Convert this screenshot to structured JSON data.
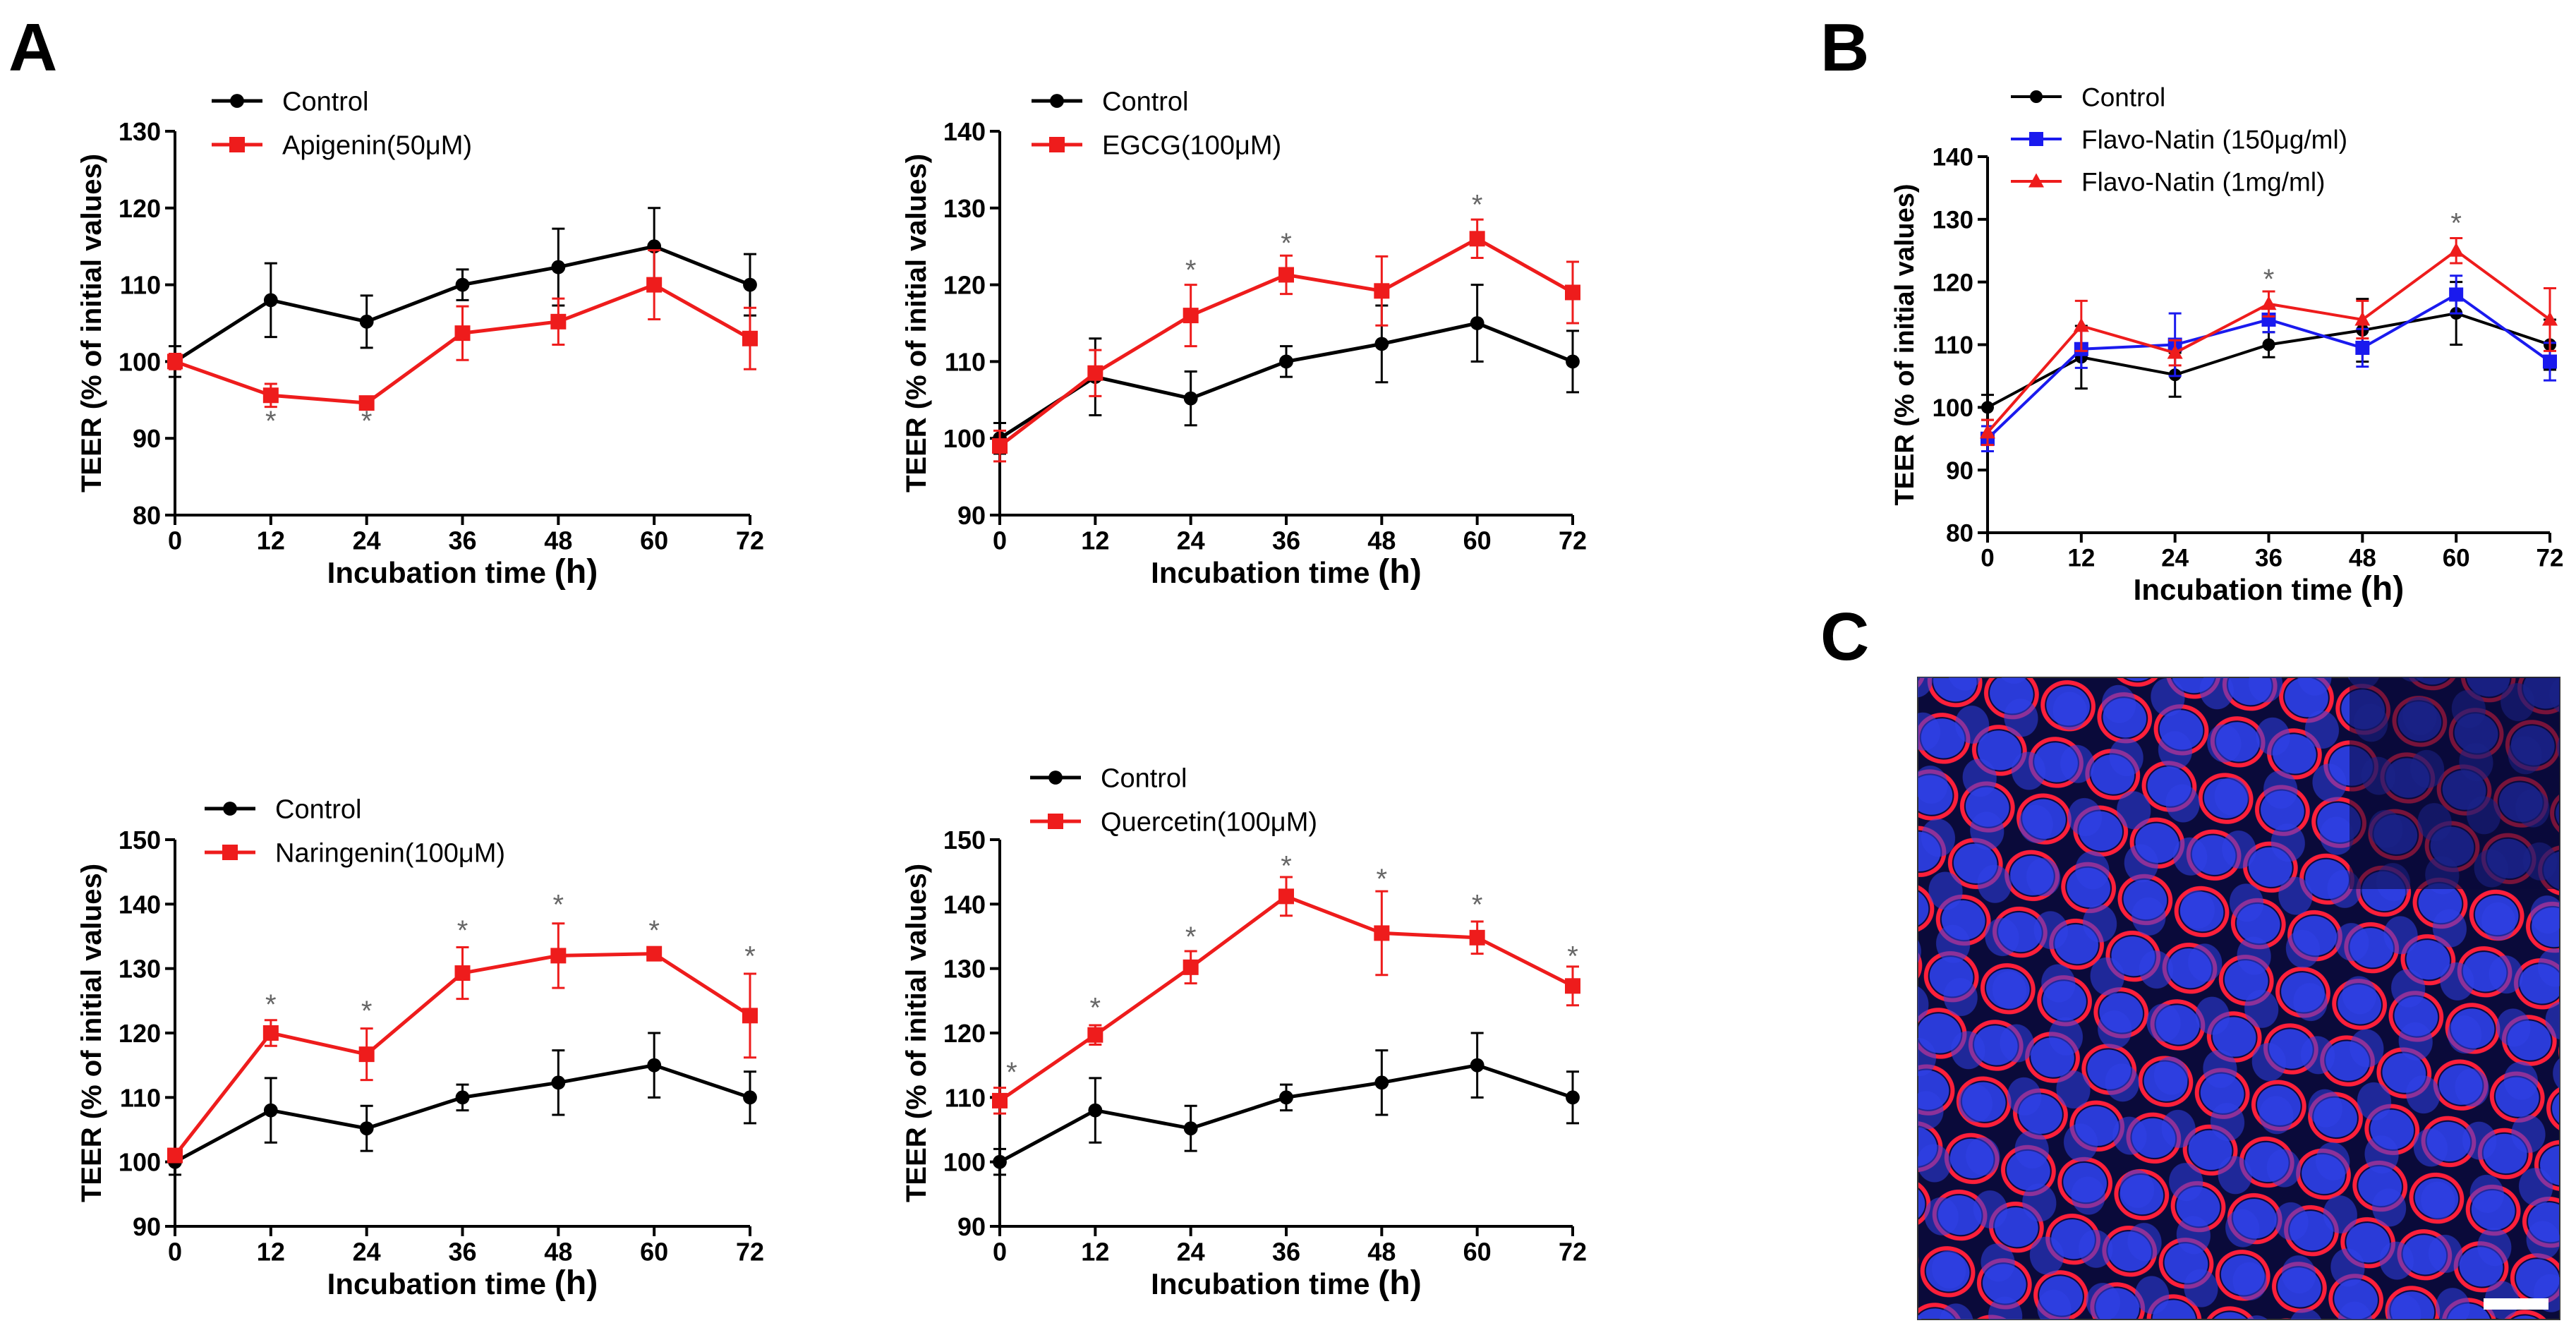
{
  "panel_labels": {
    "a": "A",
    "b": "B",
    "c": "C"
  },
  "colors": {
    "control": "#000000",
    "treatment": "#ee1c1c",
    "blue": "#1a1aee",
    "star": "#666666",
    "micro_bg": "#0a0a3a"
  },
  "image": {
    "name": "Confocal micrograph of cell monolayer (blue nuclei, red cell junctions) with scale bar"
  },
  "chart_data": [
    {
      "id": "apigenin",
      "type": "line",
      "ylabel": "TEER (% of initial values)",
      "xlabel": "Incubation time",
      "xlabel_unit": "(h)",
      "x": [
        0,
        12,
        24,
        36,
        48,
        60,
        72
      ],
      "xlim": [
        0,
        72
      ],
      "ylim": [
        80,
        130
      ],
      "yticks": [
        80,
        90,
        100,
        110,
        120,
        130
      ],
      "series": [
        {
          "name": "Control",
          "marker": "circle",
          "color": "#000000",
          "values": [
            100,
            108,
            105.2,
            110,
            112.3,
            115,
            110
          ],
          "errors": [
            2,
            4.8,
            3.4,
            2,
            5,
            5,
            4
          ]
        },
        {
          "name": "Apigenin(50μM)",
          "marker": "square",
          "color": "#ee1c1c",
          "values": [
            100,
            95.6,
            94.6,
            103.7,
            105.2,
            110,
            103
          ],
          "errors": [
            1,
            1.5,
            0.8,
            3.5,
            3,
            4.5,
            4
          ]
        }
      ],
      "significance": [
        {
          "x": 12,
          "y": 92.3,
          "label": "*"
        },
        {
          "x": 24,
          "y": 92.3,
          "label": "*"
        }
      ]
    },
    {
      "id": "egcg",
      "type": "line",
      "ylabel": "TEER (% of initial values)",
      "xlabel": "Incubation time",
      "xlabel_unit": "(h)",
      "x": [
        0,
        12,
        24,
        36,
        48,
        60,
        72
      ],
      "xlim": [
        0,
        72
      ],
      "ylim": [
        90,
        140
      ],
      "yticks": [
        90,
        100,
        110,
        120,
        130,
        140
      ],
      "series": [
        {
          "name": "Control",
          "marker": "circle",
          "color": "#000000",
          "values": [
            100,
            108,
            105.2,
            110,
            112.3,
            115,
            110
          ],
          "errors": [
            2,
            5,
            3.5,
            2,
            5,
            5,
            4
          ]
        },
        {
          "name": "EGCG(100μM)",
          "marker": "square",
          "color": "#ee1c1c",
          "values": [
            99,
            108.5,
            116,
            121.3,
            119.2,
            126,
            119
          ],
          "errors": [
            2,
            3,
            4,
            2.5,
            4.5,
            2.5,
            4
          ]
        }
      ],
      "significance": [
        {
          "x": 24,
          "y": 122,
          "label": "*"
        },
        {
          "x": 36,
          "y": 125.5,
          "label": "*"
        },
        {
          "x": 60,
          "y": 130.5,
          "label": "*"
        }
      ]
    },
    {
      "id": "flavonatin",
      "type": "line",
      "ylabel": "TEER (% of initial values)",
      "xlabel": "Incubation time",
      "xlabel_unit": "(h)",
      "x": [
        0,
        12,
        24,
        36,
        48,
        60,
        72
      ],
      "xlim": [
        0,
        72
      ],
      "ylim": [
        80,
        140
      ],
      "yticks": [
        80,
        90,
        100,
        110,
        120,
        130,
        140
      ],
      "series": [
        {
          "name": "Control",
          "marker": "circle",
          "color": "#000000",
          "values": [
            100,
            108,
            105.2,
            110,
            112.3,
            115,
            110
          ],
          "errors": [
            2,
            5,
            3.5,
            2,
            5,
            5,
            4
          ]
        },
        {
          "name": "Flavo-Natin (150μg/ml)",
          "marker": "square",
          "color": "#1a1aee",
          "values": [
            95,
            109.3,
            110,
            114,
            109.5,
            118,
            107.3
          ],
          "errors": [
            2,
            3,
            5,
            2,
            3,
            3,
            3
          ]
        },
        {
          "name": "Flavo-Natin (1mg/ml)",
          "marker": "triangle",
          "color": "#ee1c1c",
          "values": [
            96,
            113,
            108.7,
            116.5,
            114,
            125,
            114
          ],
          "errors": [
            2,
            4,
            2,
            2,
            3,
            2,
            5
          ]
        }
      ],
      "significance": [
        {
          "x": 36,
          "y": 120.5,
          "label": "*"
        },
        {
          "x": 60,
          "y": 129.5,
          "label": "*"
        }
      ]
    },
    {
      "id": "naringenin",
      "type": "line",
      "ylabel": "TEER (% of initial values)",
      "xlabel": "Incubation time",
      "xlabel_unit": "(h)",
      "x": [
        0,
        12,
        24,
        36,
        48,
        60,
        72
      ],
      "xlim": [
        0,
        72
      ],
      "ylim": [
        90,
        150
      ],
      "yticks": [
        90,
        100,
        110,
        120,
        130,
        140,
        150
      ],
      "series": [
        {
          "name": "Control",
          "marker": "circle",
          "color": "#000000",
          "values": [
            100,
            108,
            105.2,
            110,
            112.3,
            115,
            110
          ],
          "errors": [
            2,
            5,
            3.5,
            2,
            5,
            5,
            4
          ]
        },
        {
          "name": "Naringenin(100μM)",
          "marker": "square",
          "color": "#ee1c1c",
          "values": [
            101,
            120,
            116.7,
            129.3,
            132,
            132.3,
            122.7
          ],
          "errors": [
            1,
            2,
            4,
            4,
            5,
            1,
            6.5
          ]
        }
      ],
      "significance": [
        {
          "x": 12,
          "y": 124.5,
          "label": "*"
        },
        {
          "x": 24,
          "y": 123.5,
          "label": "*"
        },
        {
          "x": 36,
          "y": 136,
          "label": "*"
        },
        {
          "x": 48,
          "y": 140,
          "label": "*"
        },
        {
          "x": 60,
          "y": 136,
          "label": "*"
        },
        {
          "x": 72,
          "y": 132,
          "label": "*"
        }
      ]
    },
    {
      "id": "quercetin",
      "type": "line",
      "ylabel": "TEER (% of initial values)",
      "xlabel": "Incubation time",
      "xlabel_unit": "(h)",
      "x": [
        0,
        12,
        24,
        36,
        48,
        60,
        72
      ],
      "xlim": [
        0,
        72
      ],
      "ylim": [
        90,
        150
      ],
      "yticks": [
        90,
        100,
        110,
        120,
        130,
        140,
        150
      ],
      "series": [
        {
          "name": "Control",
          "marker": "circle",
          "color": "#000000",
          "values": [
            100,
            108,
            105.2,
            110,
            112.3,
            115,
            110
          ],
          "errors": [
            2,
            5,
            3.5,
            2,
            5,
            5,
            4
          ]
        },
        {
          "name": "Quercetin(100μM)",
          "marker": "square",
          "color": "#ee1c1c",
          "values": [
            109.5,
            119.7,
            130.2,
            141.2,
            135.5,
            134.8,
            127.3
          ],
          "errors": [
            2,
            1.5,
            2.5,
            3,
            6.5,
            2.5,
            3
          ]
        }
      ],
      "significance": [
        {
          "x": 1.5,
          "y": 114,
          "label": "*"
        },
        {
          "x": 12,
          "y": 124,
          "label": "*"
        },
        {
          "x": 24,
          "y": 135,
          "label": "*"
        },
        {
          "x": 36,
          "y": 146,
          "label": "*"
        },
        {
          "x": 48,
          "y": 144,
          "label": "*"
        },
        {
          "x": 60,
          "y": 140,
          "label": "*"
        },
        {
          "x": 72,
          "y": 132,
          "label": "*"
        }
      ]
    }
  ]
}
